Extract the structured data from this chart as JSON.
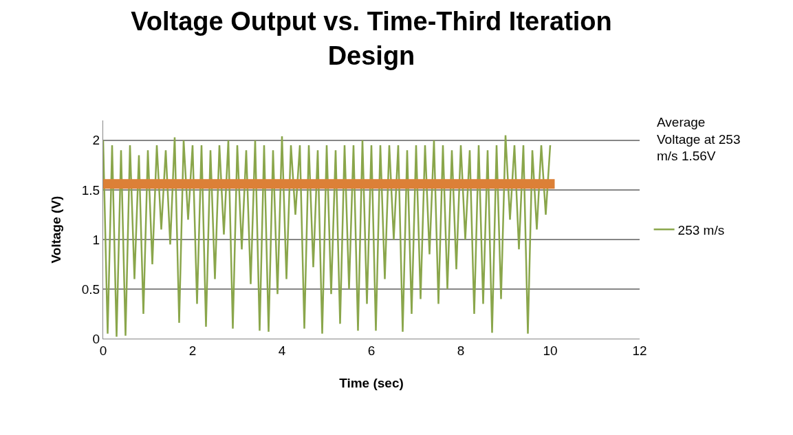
{
  "chart_data": {
    "type": "line",
    "title": "Voltage Output vs. Time-Third Iteration Design",
    "xlabel": "Time (sec)",
    "ylabel": "Voltage (V)",
    "annotations": [
      "Average Voltage at 253 m/s 1.56V"
    ],
    "xlim": [
      0,
      12
    ],
    "xticks": [
      0,
      2,
      4,
      6,
      8,
      10,
      12
    ],
    "ylim": [
      0,
      2.2
    ],
    "yticks": [
      0,
      0.5,
      1,
      1.5,
      2
    ],
    "grid": "y",
    "legend": "right",
    "marker": "none",
    "line_style": "solid",
    "series": [
      {
        "name": "253 m/s",
        "color": "#8aa64b",
        "x": [
          0,
          0.1,
          0.2,
          0.3,
          0.4,
          0.5,
          0.6,
          0.7,
          0.8,
          0.9,
          1,
          1.1,
          1.2,
          1.3,
          1.4,
          1.5,
          1.6,
          1.7,
          1.8,
          1.9,
          2,
          2.1,
          2.2,
          2.3,
          2.4,
          2.5,
          2.6,
          2.7,
          2.8,
          2.9,
          3,
          3.1,
          3.2,
          3.3,
          3.4,
          3.5,
          3.6,
          3.7,
          3.8,
          3.9,
          4,
          4.1,
          4.2,
          4.3,
          4.4,
          4.5,
          4.6,
          4.7,
          4.8,
          4.9,
          5,
          5.1,
          5.2,
          5.3,
          5.4,
          5.5,
          5.6,
          5.7,
          5.8,
          5.9,
          6,
          6.1,
          6.2,
          6.3,
          6.4,
          6.5,
          6.6,
          6.7,
          6.8,
          6.9,
          7,
          7.1,
          7.2,
          7.3,
          7.4,
          7.5,
          7.6,
          7.7,
          7.8,
          7.9,
          8,
          8.1,
          8.2,
          8.3,
          8.4,
          8.5,
          8.6,
          8.7,
          8.8,
          8.9,
          9,
          9.1,
          9.2,
          9.3,
          9.4,
          9.5,
          9.6,
          9.7,
          9.8,
          9.9,
          10
        ],
        "values": [
          2.0,
          0.05,
          1.95,
          0.02,
          1.9,
          0.03,
          1.95,
          0.6,
          1.85,
          0.25,
          1.9,
          0.75,
          1.95,
          1.1,
          1.9,
          0.95,
          2.03,
          0.16,
          2.0,
          1.2,
          1.95,
          0.35,
          1.95,
          0.12,
          1.9,
          0.6,
          1.95,
          1.05,
          2.0,
          0.1,
          1.95,
          0.9,
          1.9,
          0.55,
          2.0,
          0.08,
          1.95,
          0.07,
          1.9,
          0.45,
          2.04,
          0.6,
          1.95,
          1.25,
          1.95,
          0.1,
          1.95,
          0.72,
          1.9,
          0.05,
          1.95,
          0.45,
          1.9,
          0.15,
          1.95,
          0.5,
          1.95,
          0.08,
          2.0,
          0.35,
          1.95,
          0.08,
          1.95,
          0.6,
          1.95,
          1.0,
          1.95,
          0.07,
          1.9,
          0.25,
          1.95,
          0.4,
          1.95,
          0.85,
          2.0,
          0.35,
          1.95,
          0.5,
          1.9,
          0.7,
          1.95,
          1.0,
          1.9,
          0.25,
          1.95,
          0.35,
          1.9,
          0.06,
          1.95,
          0.4,
          2.05,
          1.2,
          1.95,
          0.9,
          1.95,
          0.05,
          1.9,
          1.1,
          1.95,
          1.25,
          1.95
        ]
      },
      {
        "type": "line",
        "color": "#dc8037",
        "x": [
          0,
          10.1
        ],
        "values": [
          1.56,
          1.56
        ]
      }
    ]
  }
}
